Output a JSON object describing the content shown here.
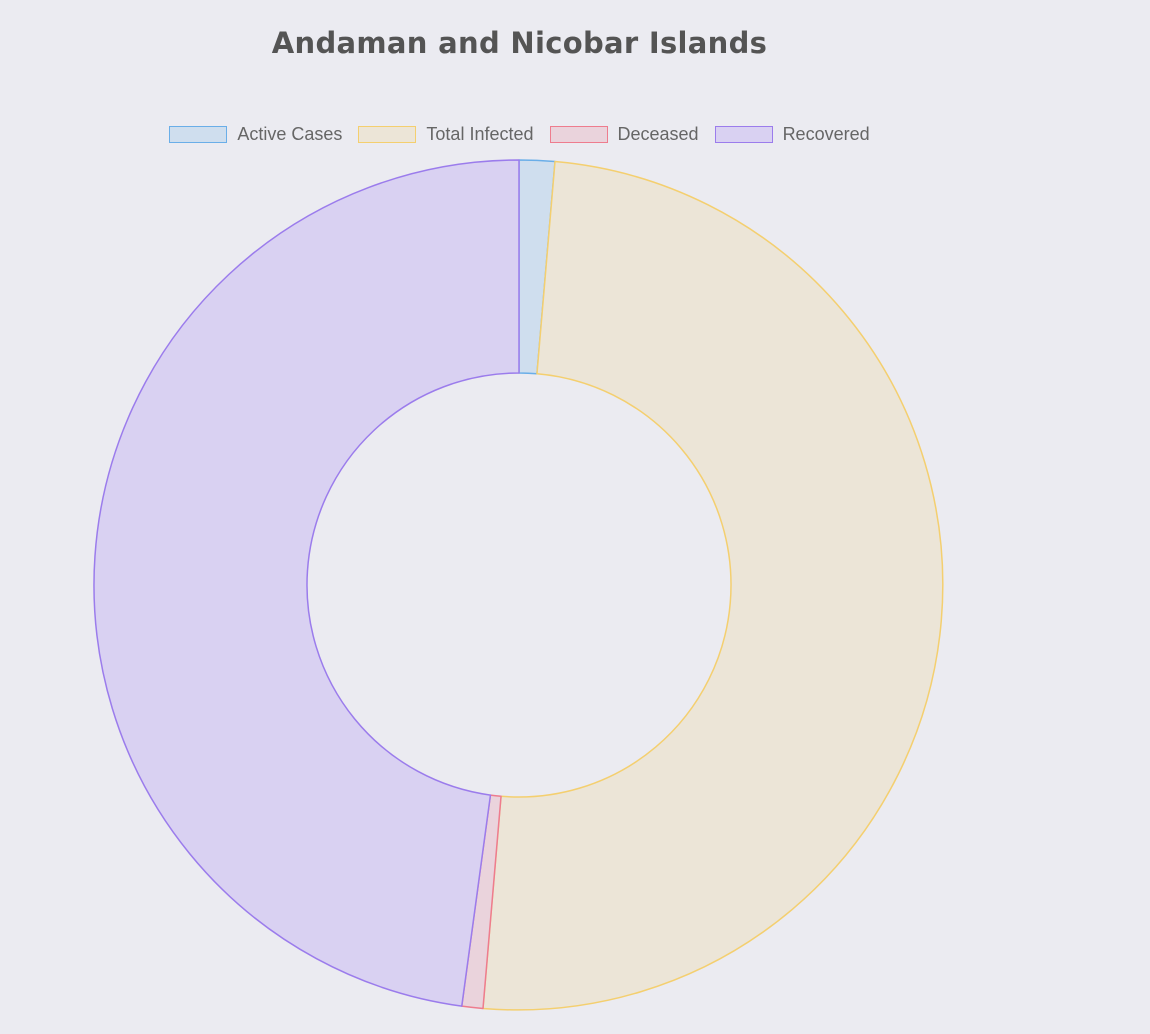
{
  "chart_data": {
    "type": "doughnut",
    "title": "Andaman and Nicobar Islands",
    "legend_position": "top",
    "series": [
      {
        "name": "Active Cases",
        "value": 1.35,
        "fill": "#cfdeee",
        "stroke": "#6aaee8"
      },
      {
        "name": "Total Infected",
        "value": 50.0,
        "fill": "#ece5d7",
        "stroke": "#f4cf6f"
      },
      {
        "name": "Deceased",
        "value": 0.8,
        "fill": "#ead3dc",
        "stroke": "#ee7c8e"
      },
      {
        "name": "Recovered",
        "value": 47.85,
        "fill": "#d9d1f2",
        "stroke": "#9b7cec"
      }
    ]
  }
}
